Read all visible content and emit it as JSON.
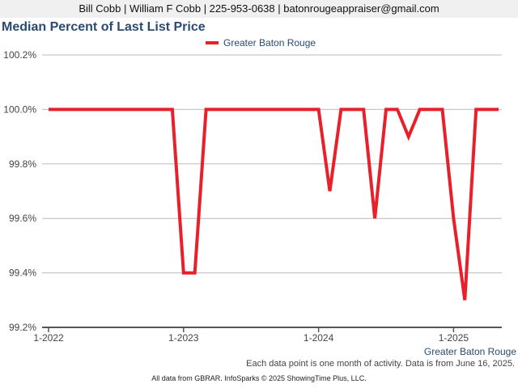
{
  "header": {
    "text": "Bill Cobb | William F Cobb | 225-953-0638 | batonrougeappraiser@gmail.com"
  },
  "footer": {
    "note": "Each data point is one month of activity. Data is from June 16, 2025.",
    "credit": "All data from GBRAR. InfoSparks © 2025 ShowingTime Plus, LLC."
  },
  "colors": {
    "series": "#e8202a",
    "grid": "#bbbbbb",
    "axis": "#555555"
  },
  "chart_data": {
    "type": "line",
    "title": "Median Percent of Last List Price",
    "xlabel": "Greater Baton Rouge",
    "ylabel": "",
    "ylim": [
      99.2,
      100.2
    ],
    "yticks": [
      99.2,
      99.4,
      99.6,
      99.8,
      100.0,
      100.2
    ],
    "yticklabels": [
      "99.2%",
      "99.4%",
      "99.6%",
      "99.8%",
      "100.0%",
      "100.2%"
    ],
    "xticks": [
      "2022-01",
      "2023-01",
      "2024-01",
      "2025-01"
    ],
    "xticklabels": [
      "1-2022",
      "1-2023",
      "1-2024",
      "1-2025"
    ],
    "grid": true,
    "legend": "top-center",
    "x": [
      "2022-01",
      "2022-02",
      "2022-03",
      "2022-04",
      "2022-05",
      "2022-06",
      "2022-07",
      "2022-08",
      "2022-09",
      "2022-10",
      "2022-11",
      "2022-12",
      "2023-01",
      "2023-02",
      "2023-03",
      "2023-04",
      "2023-05",
      "2023-06",
      "2023-07",
      "2023-08",
      "2023-09",
      "2023-10",
      "2023-11",
      "2023-12",
      "2024-01",
      "2024-02",
      "2024-03",
      "2024-04",
      "2024-05",
      "2024-06",
      "2024-07",
      "2024-08",
      "2024-09",
      "2024-10",
      "2024-11",
      "2024-12",
      "2025-01",
      "2025-02",
      "2025-03",
      "2025-04",
      "2025-05"
    ],
    "series": [
      {
        "name": "Greater Baton Rouge",
        "values": [
          100,
          100,
          100,
          100,
          100,
          100,
          100,
          100,
          100,
          100,
          100,
          100,
          99.4,
          99.4,
          100,
          100,
          100,
          100,
          100,
          100,
          100,
          100,
          100,
          100,
          100,
          99.7,
          100,
          100,
          100,
          99.6,
          100,
          100,
          99.9,
          100,
          100,
          100,
          99.6,
          99.3,
          100,
          100,
          100
        ]
      }
    ]
  }
}
